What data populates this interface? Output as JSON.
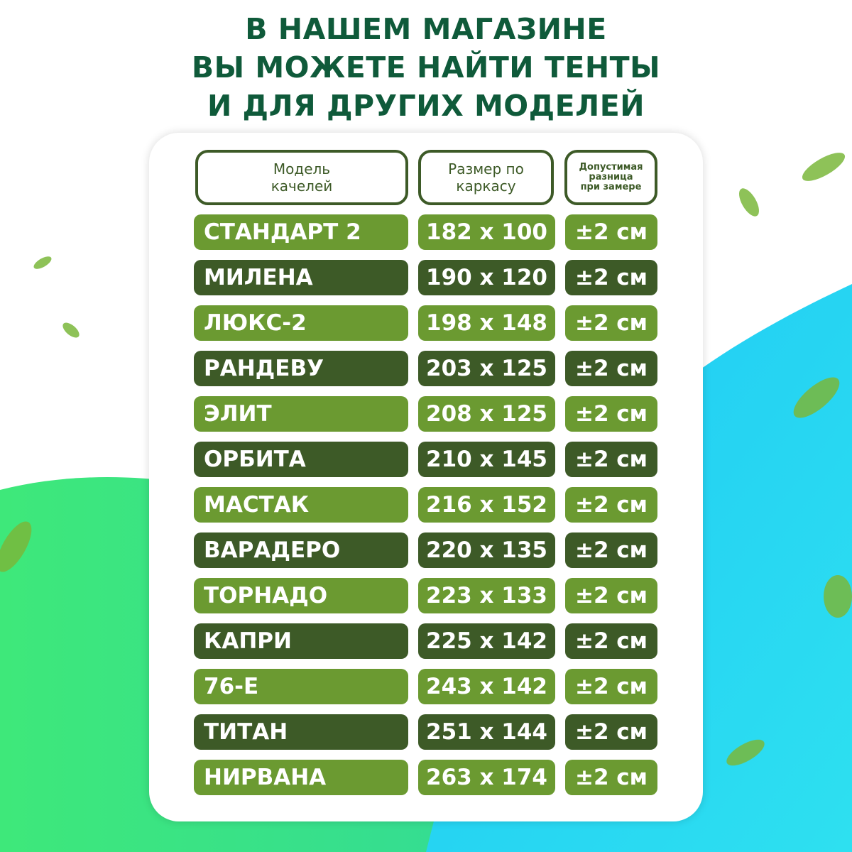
{
  "title": {
    "lines": [
      "В НАШЕМ МАГАЗИНЕ",
      "ВЫ МОЖЕТЕ НАЙТИ ТЕНТЫ",
      "И ДЛЯ ДРУГИХ МОДЕЛЕЙ"
    ]
  },
  "colors": {
    "title": "#0f5a3a",
    "row_light": "#6b9a31",
    "row_dark": "#3d5a27",
    "bg_green": "#3ee87a",
    "bg_cyan": "#1ec8f5"
  },
  "table": {
    "headers": {
      "model": [
        "Модель",
        "качелей"
      ],
      "size": [
        "Размер по",
        "каркасу"
      ],
      "tolerance": [
        "Допустимая",
        "разница",
        "при замере"
      ]
    },
    "rows": [
      {
        "model": "СТАНДАРТ 2",
        "size": "182 x 100",
        "tolerance": "±2 см"
      },
      {
        "model": "МИЛЕНА",
        "size": "190 x 120",
        "tolerance": "±2 см"
      },
      {
        "model": "ЛЮКС-2",
        "size": "198 x 148",
        "tolerance": "±2 см"
      },
      {
        "model": "РАНДЕВУ",
        "size": "203 x 125",
        "tolerance": "±2 см"
      },
      {
        "model": "ЭЛИТ",
        "size": "208 x 125",
        "tolerance": "±2 см"
      },
      {
        "model": "ОРБИТА",
        "size": "210 x 145",
        "tolerance": "±2 см"
      },
      {
        "model": "МАСТАК",
        "size": "216 x 152",
        "tolerance": "±2 см"
      },
      {
        "model": "ВАРАДЕРО",
        "size": "220 x 135",
        "tolerance": "±2 см"
      },
      {
        "model": "ТОРНАДО",
        "size": "223 x 133",
        "tolerance": "±2 см"
      },
      {
        "model": "КАПРИ",
        "size": "225 x 142",
        "tolerance": "±2 см"
      },
      {
        "model": "76-Е",
        "size": "243 x 142",
        "tolerance": "±2 см"
      },
      {
        "model": "ТИТАН",
        "size": "251 x 144",
        "tolerance": "±2 см"
      },
      {
        "model": "НИРВАНА",
        "size": "263 x 174",
        "tolerance": "±2 см"
      }
    ]
  }
}
